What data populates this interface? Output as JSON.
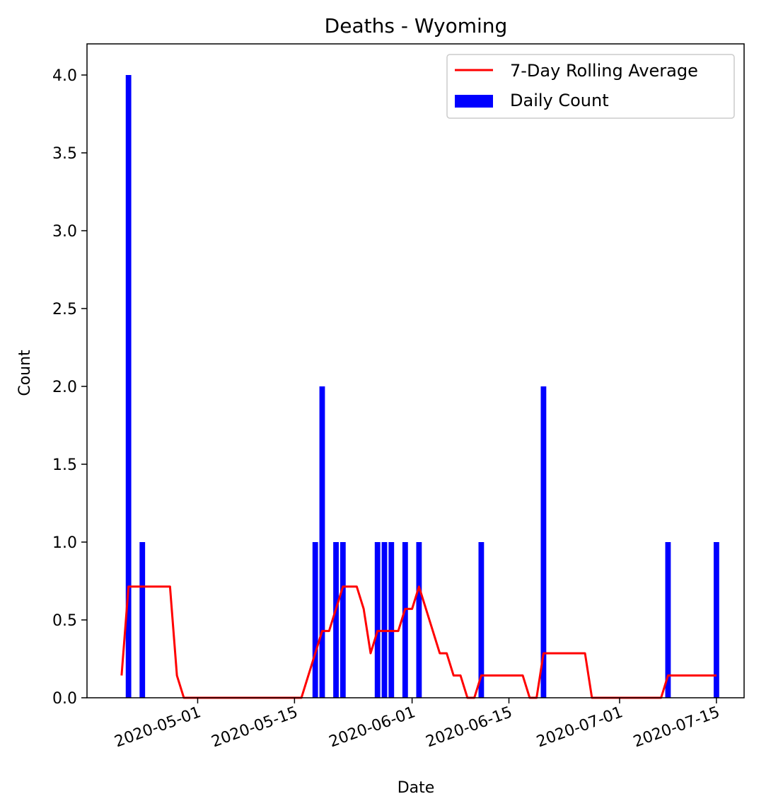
{
  "chart_data": {
    "type": "bar",
    "title": "Deaths - Wyoming",
    "xlabel": "Date",
    "ylabel": "Count",
    "xlim": [
      "2020-04-15",
      "2020-07-19"
    ],
    "ylim": [
      0,
      4.2
    ],
    "x_ticks": [
      "2020-05-01",
      "2020-05-15",
      "2020-06-01",
      "2020-06-15",
      "2020-07-01",
      "2020-07-15"
    ],
    "y_ticks": [
      0.0,
      0.5,
      1.0,
      1.5,
      2.0,
      2.5,
      3.0,
      3.5,
      4.0
    ],
    "y_tick_labels": [
      "0.0",
      "0.5",
      "1.0",
      "1.5",
      "2.0",
      "2.5",
      "3.0",
      "3.5",
      "4.0"
    ],
    "legend_position": "upper right",
    "series": [
      {
        "name": "Daily Count",
        "type": "bar",
        "color": "#0000ff",
        "points": [
          {
            "x": "2020-04-21",
            "y": 4
          },
          {
            "x": "2020-04-23",
            "y": 1
          },
          {
            "x": "2020-05-18",
            "y": 1
          },
          {
            "x": "2020-05-19",
            "y": 2
          },
          {
            "x": "2020-05-21",
            "y": 1
          },
          {
            "x": "2020-05-22",
            "y": 1
          },
          {
            "x": "2020-05-27",
            "y": 1
          },
          {
            "x": "2020-05-28",
            "y": 1
          },
          {
            "x": "2020-05-29",
            "y": 1
          },
          {
            "x": "2020-05-31",
            "y": 1
          },
          {
            "x": "2020-06-02",
            "y": 1
          },
          {
            "x": "2020-06-11",
            "y": 1
          },
          {
            "x": "2020-06-20",
            "y": 2
          },
          {
            "x": "2020-07-08",
            "y": 1
          },
          {
            "x": "2020-07-15",
            "y": 1
          }
        ]
      },
      {
        "name": "7-Day Rolling Average",
        "type": "line",
        "color": "#ff0000",
        "points": [
          {
            "x": "2020-04-20",
            "y": 0.143
          },
          {
            "x": "2020-04-21",
            "y": 0.714
          },
          {
            "x": "2020-04-27",
            "y": 0.714
          },
          {
            "x": "2020-04-28",
            "y": 0.143
          },
          {
            "x": "2020-04-29",
            "y": 0.0
          },
          {
            "x": "2020-05-16",
            "y": 0.0
          },
          {
            "x": "2020-05-18",
            "y": 0.286
          },
          {
            "x": "2020-05-19",
            "y": 0.429
          },
          {
            "x": "2020-05-20",
            "y": 0.429
          },
          {
            "x": "2020-05-22",
            "y": 0.714
          },
          {
            "x": "2020-05-24",
            "y": 0.714
          },
          {
            "x": "2020-05-25",
            "y": 0.571
          },
          {
            "x": "2020-05-26",
            "y": 0.286
          },
          {
            "x": "2020-05-27",
            "y": 0.429
          },
          {
            "x": "2020-05-30",
            "y": 0.429
          },
          {
            "x": "2020-05-31",
            "y": 0.571
          },
          {
            "x": "2020-06-01",
            "y": 0.571
          },
          {
            "x": "2020-06-02",
            "y": 0.714
          },
          {
            "x": "2020-06-04",
            "y": 0.429
          },
          {
            "x": "2020-06-05",
            "y": 0.286
          },
          {
            "x": "2020-06-06",
            "y": 0.286
          },
          {
            "x": "2020-06-07",
            "y": 0.143
          },
          {
            "x": "2020-06-08",
            "y": 0.143
          },
          {
            "x": "2020-06-09",
            "y": 0.0
          },
          {
            "x": "2020-06-10",
            "y": 0.0
          },
          {
            "x": "2020-06-11",
            "y": 0.143
          },
          {
            "x": "2020-06-17",
            "y": 0.143
          },
          {
            "x": "2020-06-18",
            "y": 0.0
          },
          {
            "x": "2020-06-19",
            "y": 0.0
          },
          {
            "x": "2020-06-20",
            "y": 0.286
          },
          {
            "x": "2020-06-26",
            "y": 0.286
          },
          {
            "x": "2020-06-27",
            "y": 0.0
          },
          {
            "x": "2020-07-07",
            "y": 0.0
          },
          {
            "x": "2020-07-08",
            "y": 0.143
          },
          {
            "x": "2020-07-15",
            "y": 0.143
          }
        ]
      }
    ]
  }
}
